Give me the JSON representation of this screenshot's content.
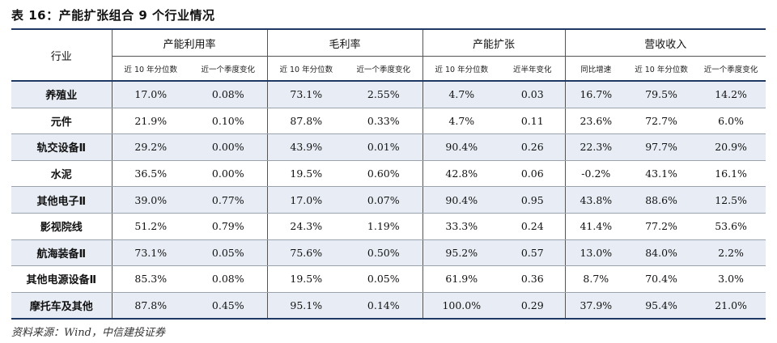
{
  "title": "表 16：产能扩张组合 9 个行业情况",
  "header": {
    "row_label": "行业",
    "groups": [
      "产能利用率",
      "毛利率",
      "产能扩张",
      "营收收入"
    ],
    "sub": [
      "近 10 年分位数",
      "近一个季度变化",
      "近 10 年分位数",
      "近一个季度变化",
      "近 10 年分位数",
      "近半年变化",
      "同比增速",
      "近 10 年分位数",
      "近一个季度变化"
    ]
  },
  "rows": [
    {
      "name": "养殖业",
      "values": [
        "17.0%",
        "0.08%",
        "73.1%",
        "2.55%",
        "4.7%",
        "0.03",
        "16.7%",
        "79.5%",
        "14.2%"
      ]
    },
    {
      "name": "元件",
      "values": [
        "21.9%",
        "0.10%",
        "87.8%",
        "0.33%",
        "4.7%",
        "0.11",
        "23.6%",
        "72.7%",
        "6.0%"
      ]
    },
    {
      "name": "轨交设备Ⅱ",
      "values": [
        "29.2%",
        "0.00%",
        "43.9%",
        "0.01%",
        "90.4%",
        "0.26",
        "22.3%",
        "97.7%",
        "20.9%"
      ]
    },
    {
      "name": "水泥",
      "values": [
        "36.5%",
        "0.00%",
        "19.5%",
        "0.60%",
        "42.8%",
        "0.06",
        "-0.2%",
        "43.1%",
        "16.1%"
      ]
    },
    {
      "name": "其他电子Ⅱ",
      "values": [
        "39.0%",
        "0.77%",
        "17.0%",
        "0.07%",
        "90.4%",
        "0.95",
        "43.8%",
        "88.6%",
        "12.5%"
      ]
    },
    {
      "name": "影视院线",
      "values": [
        "51.2%",
        "0.79%",
        "24.3%",
        "1.19%",
        "33.3%",
        "0.24",
        "41.4%",
        "77.2%",
        "53.6%"
      ]
    },
    {
      "name": "航海装备Ⅱ",
      "values": [
        "73.1%",
        "0.05%",
        "75.6%",
        "0.50%",
        "95.2%",
        "0.57",
        "13.0%",
        "84.0%",
        "2.2%"
      ]
    },
    {
      "name": "其他电源设备Ⅱ",
      "values": [
        "85.3%",
        "0.08%",
        "19.5%",
        "0.05%",
        "61.9%",
        "0.36",
        "8.7%",
        "70.4%",
        "3.0%"
      ]
    },
    {
      "name": "摩托车及其他",
      "values": [
        "87.8%",
        "0.45%",
        "95.1%",
        "0.14%",
        "100.0%",
        "0.29",
        "37.9%",
        "95.4%",
        "21.0%"
      ]
    }
  ],
  "source": "资料来源：Wind，中信建投证券"
}
